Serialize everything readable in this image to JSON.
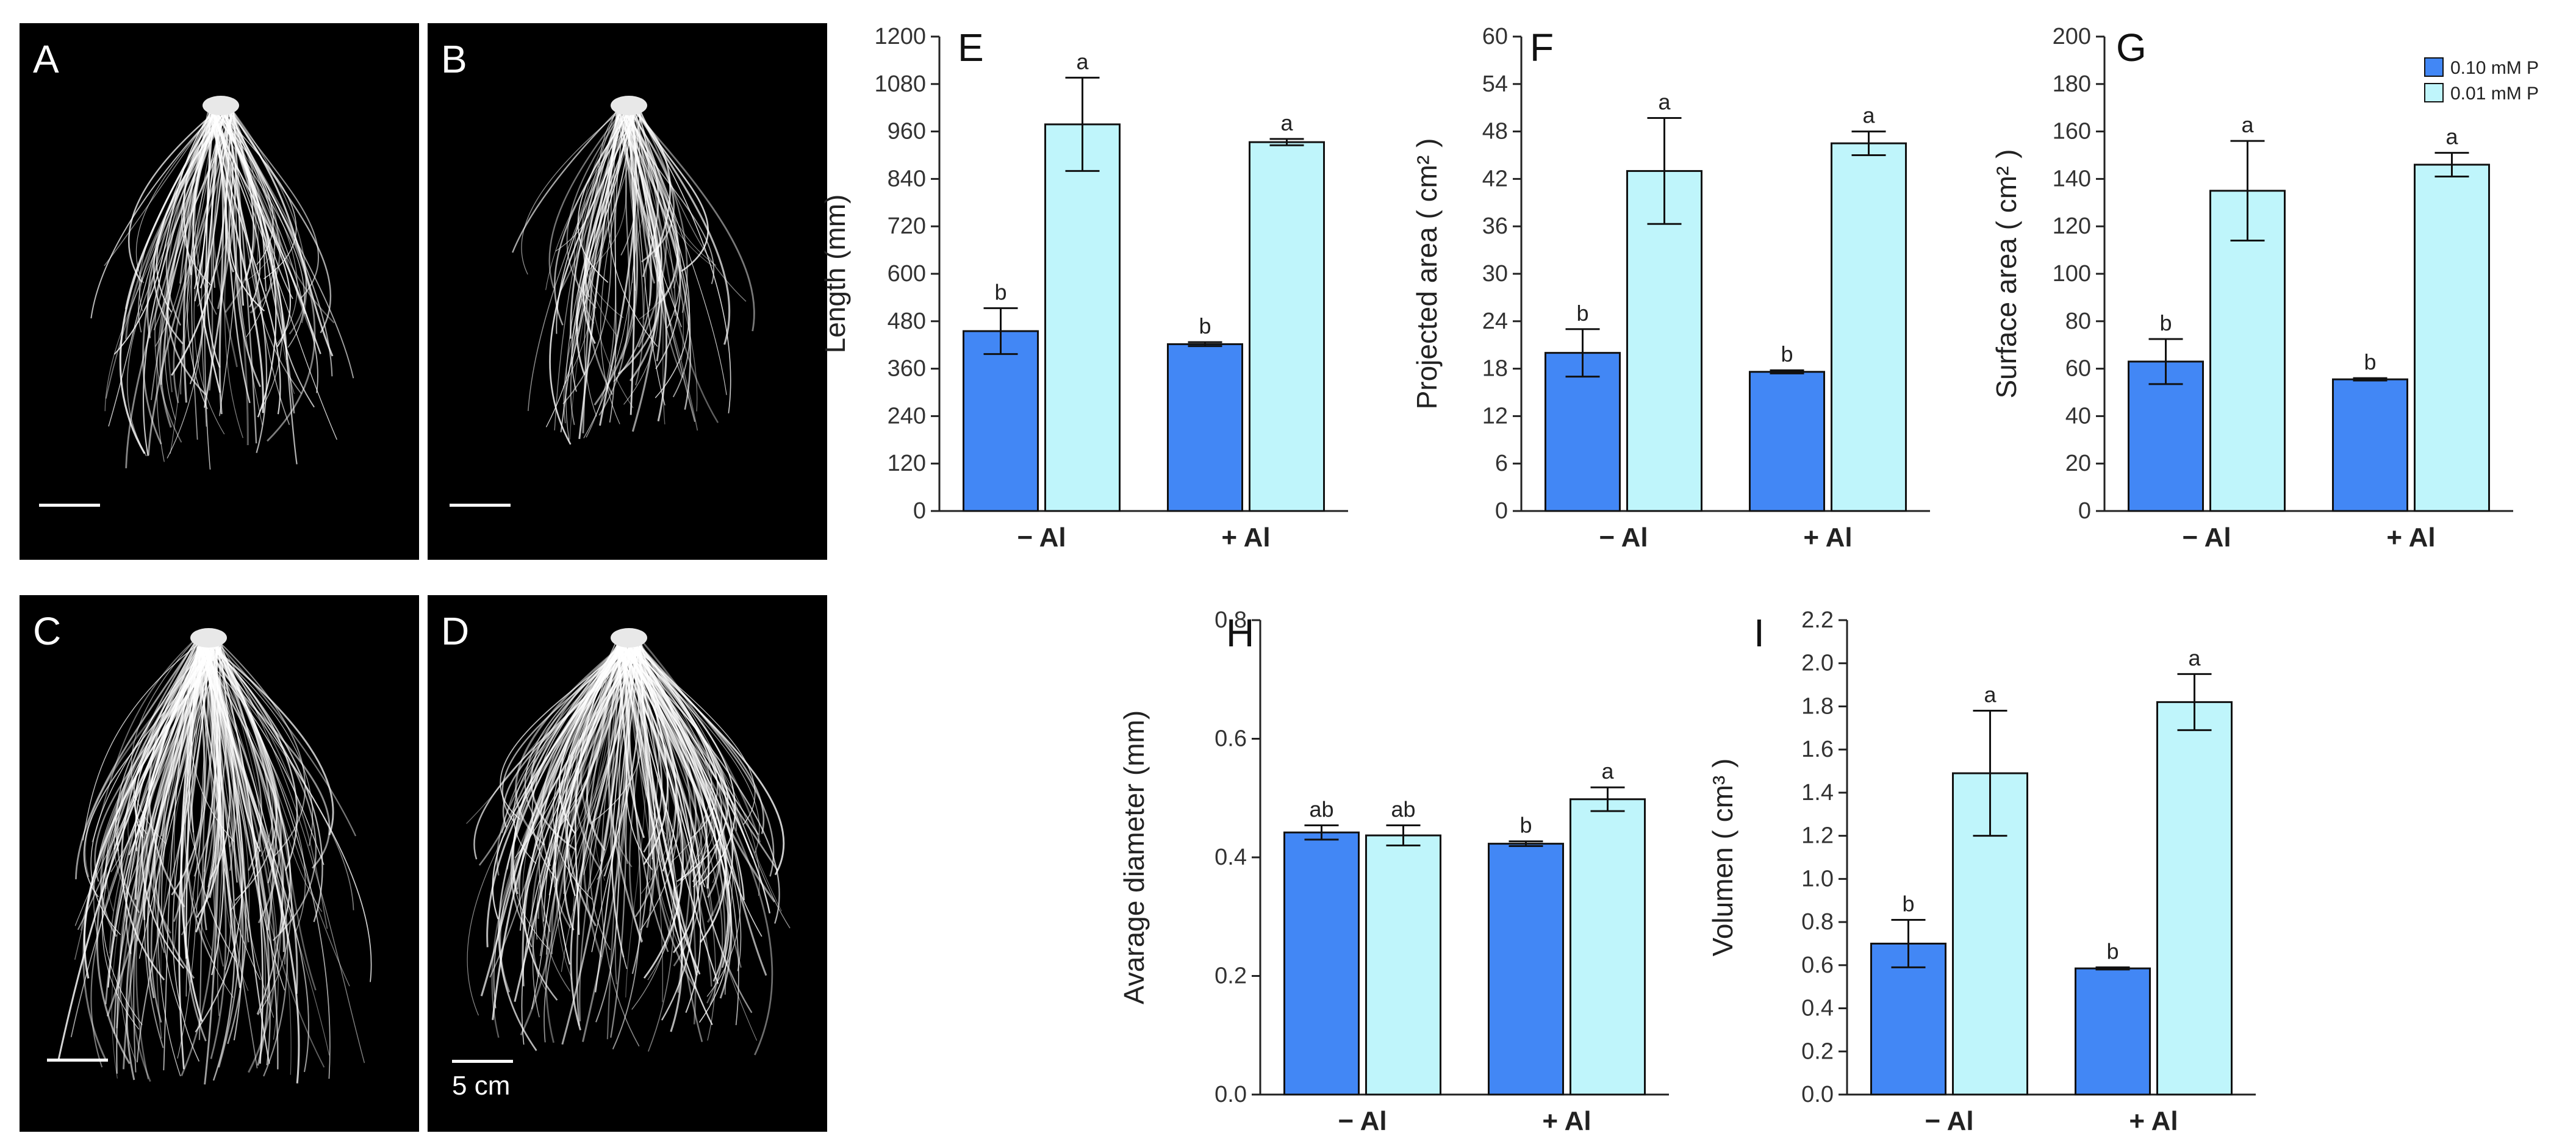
{
  "photos": [
    {
      "label": "A",
      "scale_text": ""
    },
    {
      "label": "B",
      "scale_text": ""
    },
    {
      "label": "C",
      "scale_text": ""
    },
    {
      "label": "D",
      "scale_text": "5 cm"
    }
  ],
  "colors": {
    "bar_high_p": "#4287f5",
    "bar_low_p": "#bff5fb",
    "axis": "#222222",
    "photo_bg": "#000000"
  },
  "legend": {
    "entries": [
      "0.10 mM P",
      "0.01 mM P"
    ],
    "placement": "top-right of panel G"
  },
  "chart_data": [
    {
      "panel": "E",
      "type": "bar",
      "categories": [
        "− Al",
        "+ Al"
      ],
      "series": [
        {
          "name": "0.10 mM P",
          "values": [
            455,
            422
          ],
          "errors": [
            58,
            5
          ],
          "letters": [
            "b",
            "b"
          ]
        },
        {
          "name": "0.01 mM P",
          "values": [
            978,
            933
          ],
          "errors": [
            118,
            8
          ],
          "letters": [
            "a",
            "a"
          ]
        }
      ],
      "ylabel": "Length (mm)",
      "ylim": [
        0,
        1200
      ],
      "yticks": [
        "0",
        "120",
        "240",
        "360",
        "480",
        "600",
        "720",
        "840",
        "960",
        "1080",
        "1200"
      ]
    },
    {
      "panel": "F",
      "type": "bar",
      "categories": [
        "− Al",
        "+ Al"
      ],
      "series": [
        {
          "name": "0.10 mM P",
          "values": [
            20,
            17.6
          ],
          "errors": [
            3,
            0.2
          ],
          "letters": [
            "b",
            "b"
          ]
        },
        {
          "name": "0.01 mM P",
          "values": [
            43,
            46.5
          ],
          "errors": [
            6.7,
            1.5
          ],
          "letters": [
            "a",
            "a"
          ]
        }
      ],
      "ylabel": "Projected area ( cm² )",
      "ylim": [
        0,
        60
      ],
      "yticks": [
        "0",
        "6",
        "12",
        "18",
        "24",
        "30",
        "36",
        "42",
        "48",
        "54",
        "60"
      ]
    },
    {
      "panel": "G",
      "type": "bar",
      "categories": [
        "− Al",
        "+ Al"
      ],
      "series": [
        {
          "name": "0.10 mM P",
          "values": [
            63,
            55.5
          ],
          "errors": [
            9.5,
            0.5
          ],
          "letters": [
            "b",
            "b"
          ]
        },
        {
          "name": "0.01 mM P",
          "values": [
            135,
            146
          ],
          "errors": [
            21,
            5
          ],
          "letters": [
            "a",
            "a"
          ]
        }
      ],
      "ylabel": "Surface area ( cm² )",
      "ylim": [
        0,
        200
      ],
      "yticks": [
        "0",
        "20",
        "40",
        "60",
        "80",
        "100",
        "120",
        "140",
        "160",
        "180",
        "200"
      ]
    },
    {
      "panel": "H",
      "type": "bar",
      "categories": [
        "− Al",
        "+ Al"
      ],
      "series": [
        {
          "name": "0.10 mM P",
          "values": [
            0.442,
            0.423
          ],
          "errors": [
            0.012,
            0.004
          ],
          "letters": [
            "ab",
            "b"
          ]
        },
        {
          "name": "0.01 mM P",
          "values": [
            0.437,
            0.498
          ],
          "errors": [
            0.017,
            0.02
          ],
          "letters": [
            "ab",
            "a"
          ]
        }
      ],
      "ylabel": "Avarage diameter (mm)",
      "ylim": [
        0,
        0.8
      ],
      "yticks": [
        "0.0",
        "0.2",
        "0.4",
        "0.6",
        "0.8"
      ]
    },
    {
      "panel": "I",
      "type": "bar",
      "categories": [
        "− Al",
        "+ Al"
      ],
      "series": [
        {
          "name": "0.10 mM P",
          "values": [
            0.7,
            0.585
          ],
          "errors": [
            0.11,
            0.005
          ],
          "letters": [
            "b",
            "b"
          ]
        },
        {
          "name": "0.01 mM P",
          "values": [
            1.49,
            1.82
          ],
          "errors": [
            0.29,
            0.13
          ],
          "letters": [
            "a",
            "a"
          ]
        }
      ],
      "ylabel": "Volumen ( cm³ )",
      "ylim": [
        0,
        2.2
      ],
      "yticks": [
        "0.0",
        "0.2",
        "0.4",
        "0.6",
        "0.8",
        "1.0",
        "1.2",
        "1.4",
        "1.6",
        "1.8",
        "2.0",
        "2.2"
      ]
    }
  ]
}
